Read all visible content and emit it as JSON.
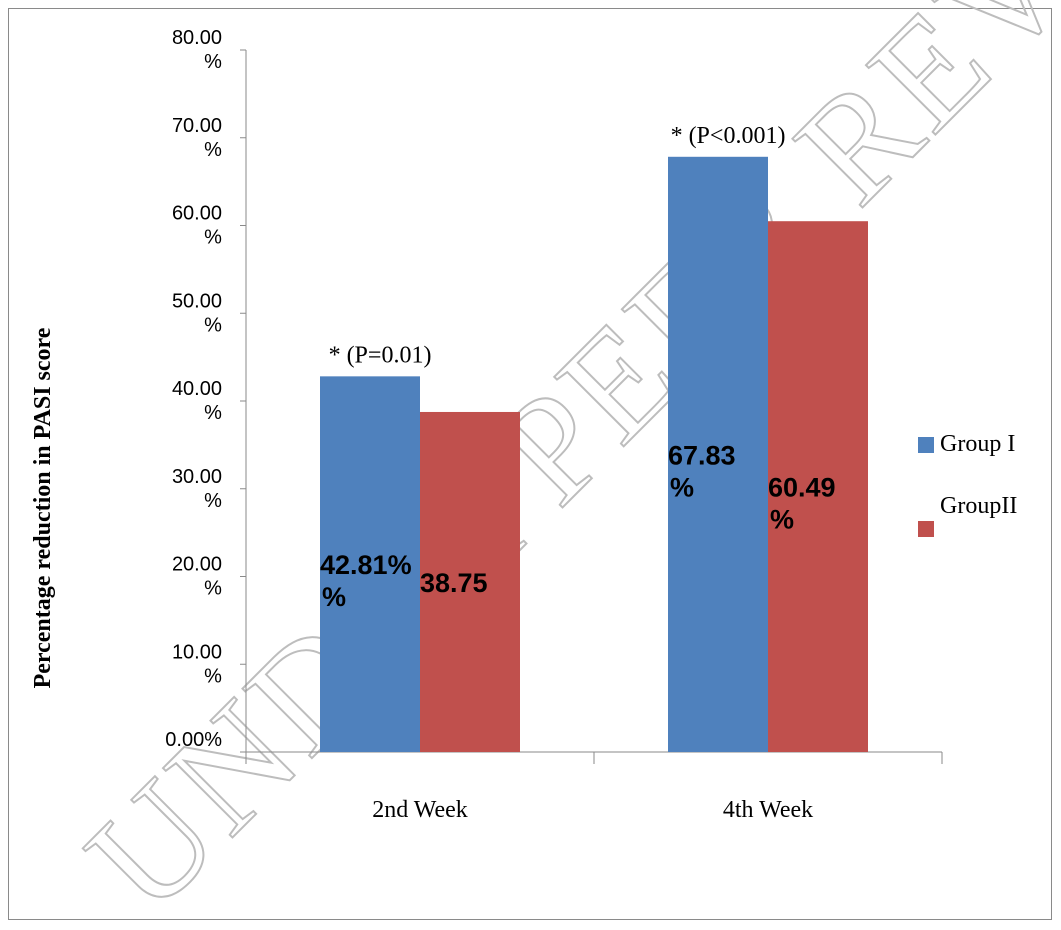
{
  "chart_data": {
    "type": "bar",
    "ylabel": "Percentage reduction in PASI score",
    "ylim": [
      0,
      80
    ],
    "yticks": [
      {
        "value": 0,
        "line1": "0.00%",
        "line2": ""
      },
      {
        "value": 10,
        "line1": "10.00",
        "line2": "%"
      },
      {
        "value": 20,
        "line1": "20.00",
        "line2": "%"
      },
      {
        "value": 30,
        "line1": "30.00",
        "line2": "%"
      },
      {
        "value": 40,
        "line1": "40.00",
        "line2": "%"
      },
      {
        "value": 50,
        "line1": "50.00",
        "line2": "%"
      },
      {
        "value": 60,
        "line1": "60.00",
        "line2": "%"
      },
      {
        "value": 70,
        "line1": "70.00",
        "line2": "%"
      },
      {
        "value": 80,
        "line1": "80.00",
        "line2": "%"
      }
    ],
    "categories": [
      "2nd Week",
      "4th Week"
    ],
    "series": [
      {
        "name": "Group I",
        "color": "#4f81bd",
        "values": [
          42.81,
          67.83
        ],
        "labels": [
          [
            "42.81%",
            "%"
          ],
          [
            "67.83",
            "%"
          ]
        ]
      },
      {
        "name": "GroupII",
        "color": "#c0504d",
        "values": [
          38.75,
          60.49
        ],
        "labels": [
          [
            "38.75",
            ""
          ],
          [
            "60.49",
            "%"
          ]
        ]
      }
    ],
    "annotations": [
      "* (P=0.01)",
      "* (P<0.001)"
    ],
    "legend_position": "right",
    "grid": false
  },
  "watermark": "UNDER PEER REVIEW"
}
